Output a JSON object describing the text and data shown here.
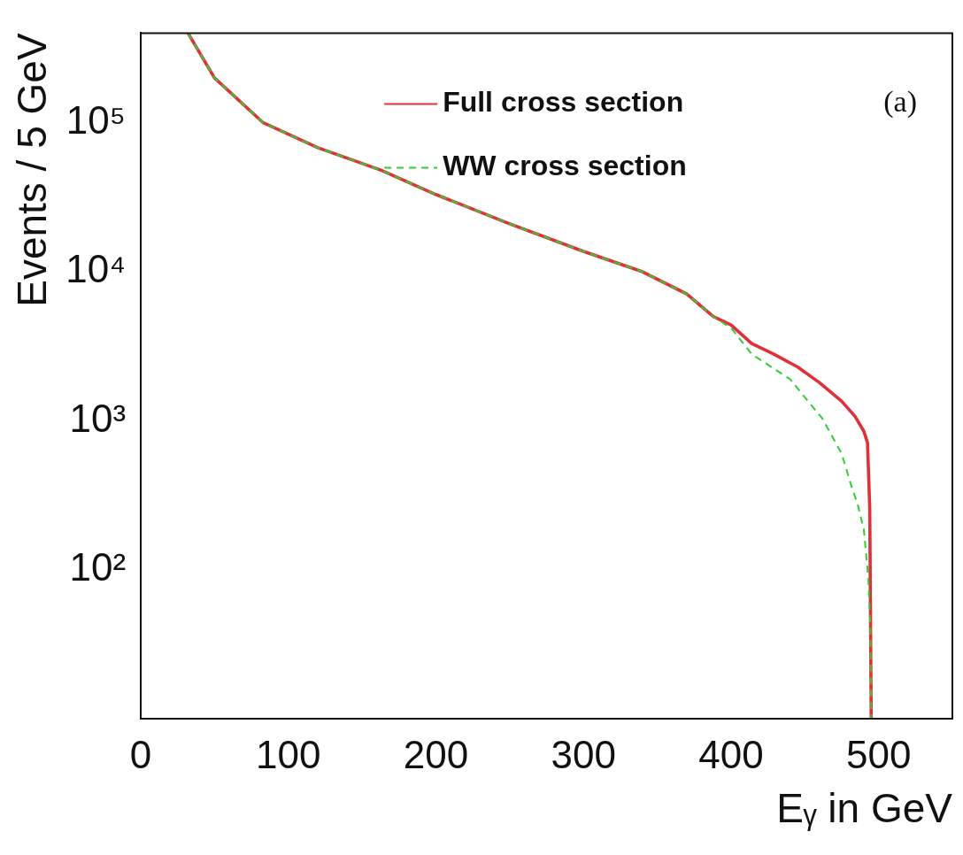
{
  "chart_data": {
    "type": "line",
    "xlabel": "Eᵧ in GeV",
    "ylabel": "Events / 5 GeV",
    "log": "y",
    "xlim": [
      0,
      550
    ],
    "xticks": [
      0,
      100,
      200,
      300,
      400,
      500
    ],
    "ylim": [
      10,
      400000
    ],
    "yticks": [
      {
        "value": 100,
        "label": "10²"
      },
      {
        "value": 1000,
        "label": "10³"
      },
      {
        "value": 10000,
        "label": "10⁴"
      },
      {
        "value": 100000,
        "label": "10⁵"
      }
    ],
    "legend": "top",
    "grid": false,
    "marker": "none",
    "annotations": [
      "(a)"
    ],
    "series": [
      {
        "name": "Full cross section",
        "color": "#e0303a",
        "line_style": "solid",
        "x": [
          32,
          50,
          83,
          120,
          163,
          200,
          250,
          300,
          340,
          370,
          388,
          400,
          414,
          429,
          445,
          460,
          475,
          484,
          490,
          492.5,
          494,
          495
        ],
        "values": [
          400000,
          200000,
          100000,
          68000,
          48000,
          33000,
          21000,
          13700,
          10000,
          7100,
          5000,
          4400,
          3300,
          2800,
          2300,
          1800,
          1350,
          1070,
          850,
          710,
          260,
          10
        ]
      },
      {
        "name": "WW cross section",
        "color": "#33cc33",
        "line_style": "dashed",
        "x": [
          32,
          50,
          83,
          120,
          163,
          200,
          250,
          300,
          340,
          370,
          388,
          400,
          414,
          440,
          462,
          475,
          481,
          486,
          490,
          493,
          494.5,
          495
        ],
        "values": [
          400000,
          200000,
          100000,
          68000,
          48000,
          33000,
          21000,
          13700,
          10000,
          7100,
          5000,
          4200,
          2800,
          1900,
          1030,
          600,
          380,
          270,
          186,
          89,
          40,
          10
        ]
      }
    ]
  }
}
